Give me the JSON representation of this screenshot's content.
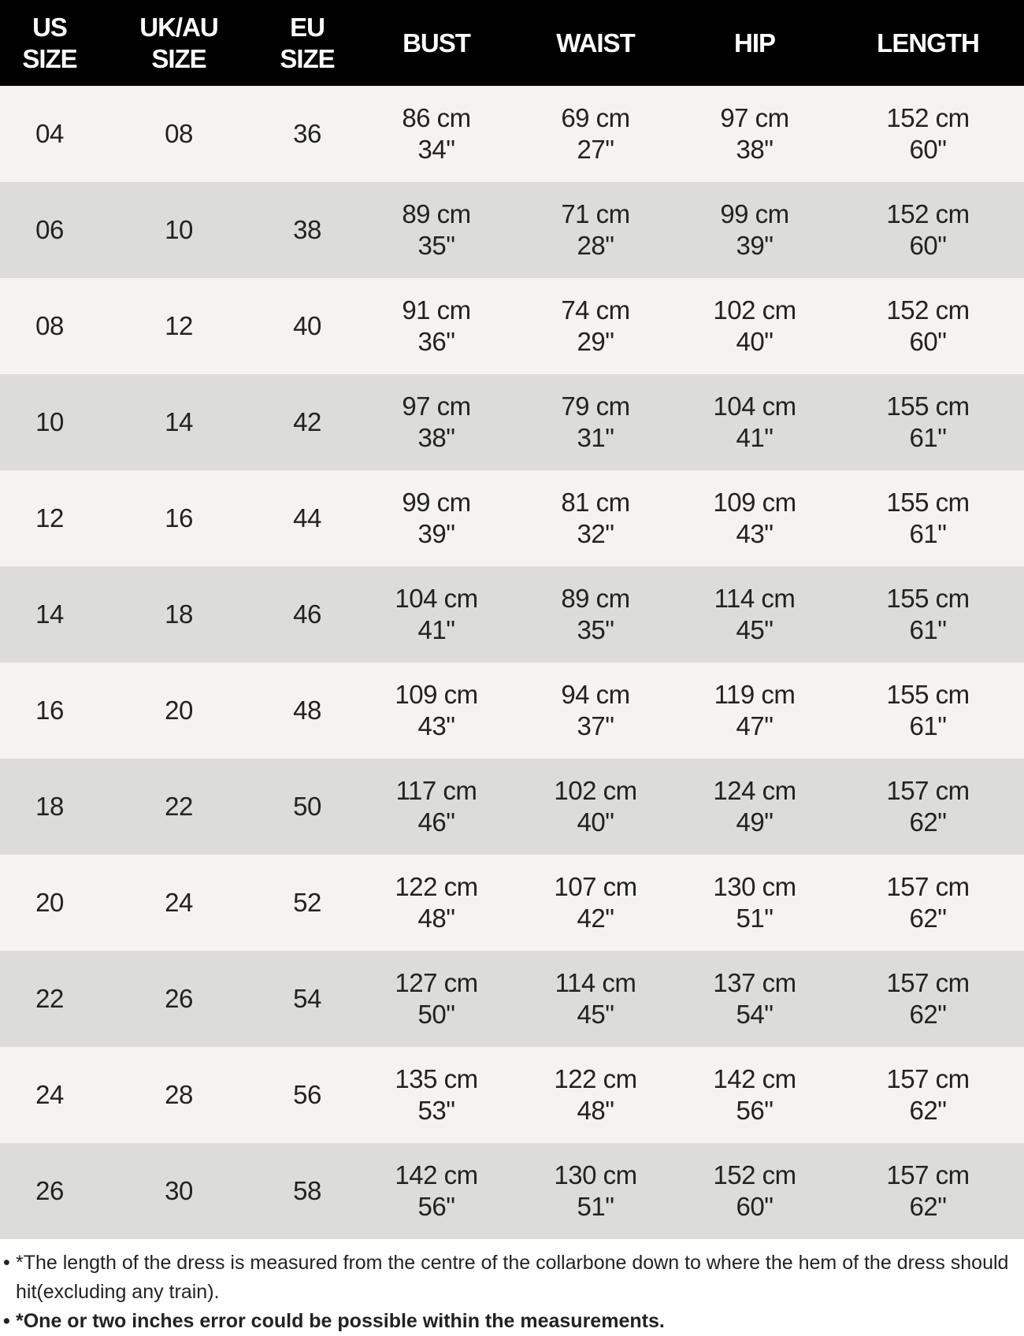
{
  "table": {
    "headers": [
      "US\nSIZE",
      "UK/AU\nSIZE",
      "EU\nSIZE",
      "BUST",
      "WAIST",
      "HIP",
      "LENGTH"
    ],
    "rows": [
      [
        "04",
        "08",
        "36",
        "86 cm",
        "34\"",
        "69 cm",
        "27\"",
        "97 cm",
        "38\"",
        "152 cm",
        "60\""
      ],
      [
        "06",
        "10",
        "38",
        "89 cm",
        "35\"",
        "71 cm",
        "28\"",
        "99 cm",
        "39\"",
        "152 cm",
        "60\""
      ],
      [
        "08",
        "12",
        "40",
        "91 cm",
        "36\"",
        "74 cm",
        "29\"",
        "102 cm",
        "40\"",
        "152 cm",
        "60\""
      ],
      [
        "10",
        "14",
        "42",
        "97 cm",
        "38\"",
        "79 cm",
        "31\"",
        "104 cm",
        "41\"",
        "155 cm",
        "61\""
      ],
      [
        "12",
        "16",
        "44",
        "99 cm",
        "39\"",
        "81 cm",
        "32\"",
        "109 cm",
        "43\"",
        "155 cm",
        "61\""
      ],
      [
        "14",
        "18",
        "46",
        "104 cm",
        "41\"",
        "89 cm",
        "35\"",
        "114 cm",
        "45\"",
        "155 cm",
        "61\""
      ],
      [
        "16",
        "20",
        "48",
        "109 cm",
        "43\"",
        "94 cm",
        "37\"",
        "119 cm",
        "47\"",
        "155 cm",
        "61\""
      ],
      [
        "18",
        "22",
        "50",
        "117 cm",
        "46\"",
        "102 cm",
        "40\"",
        "124 cm",
        "49\"",
        "157 cm",
        "62\""
      ],
      [
        "20",
        "24",
        "52",
        "122 cm",
        "48\"",
        "107 cm",
        "42\"",
        "130 cm",
        "51\"",
        "157 cm",
        "62\""
      ],
      [
        "22",
        "26",
        "54",
        "127 cm",
        "50\"",
        "114 cm",
        "45\"",
        "137 cm",
        "54\"",
        "157 cm",
        "62\""
      ],
      [
        "24",
        "28",
        "56",
        "135 cm",
        "53\"",
        "122 cm",
        "48\"",
        "142 cm",
        "56\"",
        "157 cm",
        "62\""
      ],
      [
        "26",
        "30",
        "58",
        "142 cm",
        "56\"",
        "130 cm",
        "51\"",
        "152 cm",
        "60\"",
        "157 cm",
        "62\""
      ]
    ]
  },
  "notes": {
    "bullet": "•",
    "note1": "*The length of the dress is measured from the centre of the collarbone down to where the hem of the dress should hit(excluding any train).",
    "note2": "*One or two inches error could be possible within the measurements."
  },
  "colors": {
    "header_bg": "#000000",
    "row_light": "#f4f3f1",
    "row_dark": "#dcdcdb"
  }
}
